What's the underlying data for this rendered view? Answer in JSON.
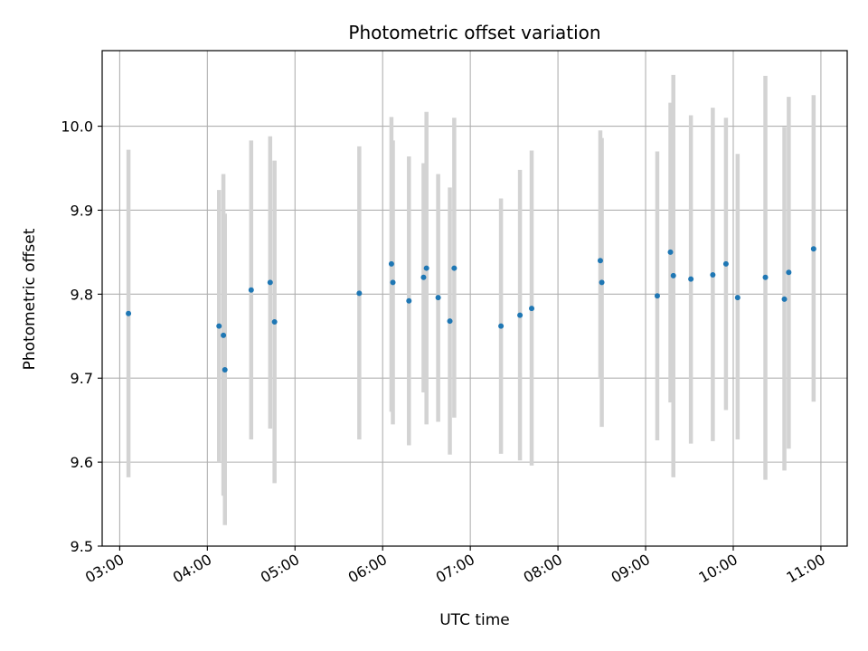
{
  "chart_data": {
    "type": "scatter",
    "title": "Photometric offset variation",
    "xlabel": "UTC time",
    "ylabel": "Photometric offset",
    "xlim": [
      "02:48",
      "11:18"
    ],
    "ylim": [
      9.5,
      10.09
    ],
    "grid": true,
    "x_ticks": [
      "03:00",
      "04:00",
      "05:00",
      "06:00",
      "07:00",
      "08:00",
      "09:00",
      "10:00",
      "11:00"
    ],
    "y_ticks": [
      "9.5",
      "9.6",
      "9.7",
      "9.8",
      "9.9",
      "10.0"
    ],
    "colors": {
      "point": "#1f77b4",
      "errorbar": "#d3d3d3",
      "grid": "#b0b0b0",
      "axis": "#000000"
    },
    "points": [
      {
        "t": "03:06",
        "y": 9.777,
        "lo": 9.582,
        "hi": 9.972
      },
      {
        "t": "04:08",
        "y": 9.762,
        "lo": 9.6,
        "hi": 9.924
      },
      {
        "t": "04:11",
        "y": 9.751,
        "lo": 9.56,
        "hi": 9.943
      },
      {
        "t": "04:12",
        "y": 9.71,
        "lo": 9.525,
        "hi": 9.896
      },
      {
        "t": "04:30",
        "y": 9.805,
        "lo": 9.627,
        "hi": 9.983
      },
      {
        "t": "04:43",
        "y": 9.814,
        "lo": 9.64,
        "hi": 9.988
      },
      {
        "t": "04:46",
        "y": 9.767,
        "lo": 9.575,
        "hi": 9.959
      },
      {
        "t": "05:44",
        "y": 9.801,
        "lo": 9.627,
        "hi": 9.976
      },
      {
        "t": "06:06",
        "y": 9.836,
        "lo": 9.66,
        "hi": 10.011
      },
      {
        "t": "06:07",
        "y": 9.814,
        "lo": 9.645,
        "hi": 9.983
      },
      {
        "t": "06:18",
        "y": 9.792,
        "lo": 9.62,
        "hi": 9.964
      },
      {
        "t": "06:28",
        "y": 9.82,
        "lo": 9.683,
        "hi": 9.956
      },
      {
        "t": "06:30",
        "y": 9.831,
        "lo": 9.645,
        "hi": 10.017
      },
      {
        "t": "06:38",
        "y": 9.796,
        "lo": 9.648,
        "hi": 9.943
      },
      {
        "t": "06:46",
        "y": 9.768,
        "lo": 9.609,
        "hi": 9.927
      },
      {
        "t": "06:49",
        "y": 9.831,
        "lo": 9.653,
        "hi": 10.01
      },
      {
        "t": "07:21",
        "y": 9.762,
        "lo": 9.61,
        "hi": 9.914
      },
      {
        "t": "07:34",
        "y": 9.775,
        "lo": 9.602,
        "hi": 9.948
      },
      {
        "t": "07:42",
        "y": 9.783,
        "lo": 9.596,
        "hi": 9.971
      },
      {
        "t": "08:29",
        "y": 9.84,
        "lo": 9.7,
        "hi": 9.995
      },
      {
        "t": "08:30",
        "y": 9.814,
        "lo": 9.642,
        "hi": 9.986
      },
      {
        "t": "09:08",
        "y": 9.798,
        "lo": 9.626,
        "hi": 9.97
      },
      {
        "t": "09:17",
        "y": 9.85,
        "lo": 9.671,
        "hi": 10.028
      },
      {
        "t": "09:19",
        "y": 9.822,
        "lo": 9.582,
        "hi": 10.061
      },
      {
        "t": "09:31",
        "y": 9.818,
        "lo": 9.622,
        "hi": 10.013
      },
      {
        "t": "09:46",
        "y": 9.823,
        "lo": 9.625,
        "hi": 10.022
      },
      {
        "t": "09:55",
        "y": 9.836,
        "lo": 9.662,
        "hi": 10.01
      },
      {
        "t": "10:03",
        "y": 9.796,
        "lo": 9.627,
        "hi": 9.967
      },
      {
        "t": "10:22",
        "y": 9.82,
        "lo": 9.579,
        "hi": 10.06
      },
      {
        "t": "10:35",
        "y": 9.794,
        "lo": 9.59,
        "hi": 9.999
      },
      {
        "t": "10:38",
        "y": 9.826,
        "lo": 9.616,
        "hi": 10.035
      },
      {
        "t": "10:55",
        "y": 9.854,
        "lo": 9.672,
        "hi": 10.037
      }
    ]
  }
}
